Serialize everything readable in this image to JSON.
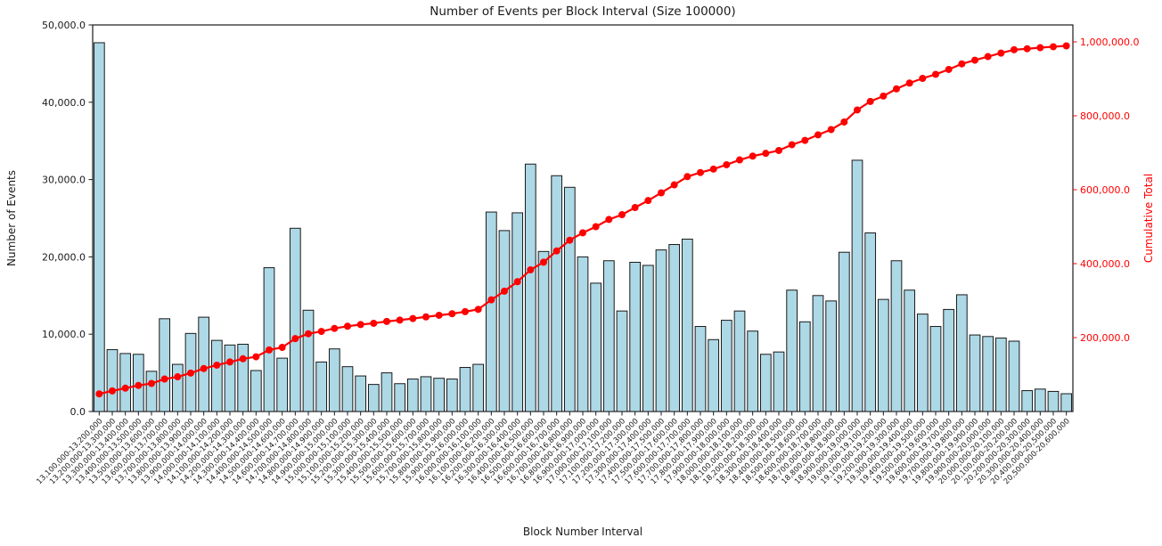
{
  "chart_data": {
    "type": "bar+line",
    "title": "Number of Events per Block Interval (Size 100000)",
    "xlabel": "Block Number Interval",
    "grid": false,
    "legend": "none",
    "background": "#ffffff",
    "left_axis": {
      "label": "Number of Events",
      "color": "#1a1a1a",
      "range": [
        0,
        50000
      ],
      "tick_values": [
        0,
        10000,
        20000,
        30000,
        40000,
        50000
      ],
      "tick_labels": [
        "0.0",
        "10,000.0",
        "20,000.0",
        "30,000.0",
        "40,000.0",
        "50,000.0"
      ]
    },
    "right_axis": {
      "label": "Cumulative Total",
      "color": "#ff0000",
      "range": [
        0,
        1045800
      ],
      "tick_values": [
        200000,
        400000,
        600000,
        800000,
        1000000
      ],
      "tick_labels": [
        "200,000.0",
        "400,000.0",
        "600,000.0",
        "800,000.0",
        "1,000,000.0"
      ]
    },
    "categories": [
      "13,100,000-13,200,000",
      "13,200,000-13,300,000",
      "13,300,000-13,400,000",
      "13,400,000-13,500,000",
      "13,500,000-13,600,000",
      "13,600,000-13,700,000",
      "13,700,000-13,800,000",
      "13,800,000-13,900,000",
      "13,900,000-14,000,000",
      "14,000,000-14,100,000",
      "14,100,000-14,200,000",
      "14,200,000-14,300,000",
      "14,300,000-14,400,000",
      "14,400,000-14,500,000",
      "14,500,000-14,600,000",
      "14,600,000-14,700,000",
      "14,700,000-14,800,000",
      "14,800,000-14,900,000",
      "14,900,000-15,000,000",
      "15,000,000-15,100,000",
      "15,100,000-15,200,000",
      "15,200,000-15,300,000",
      "15,300,000-15,400,000",
      "15,400,000-15,500,000",
      "15,500,000-15,600,000",
      "15,600,000-15,700,000",
      "15,700,000-15,800,000",
      "15,800,000-15,900,000",
      "15,900,000-16,000,000",
      "16,000,000-16,100,000",
      "16,100,000-16,200,000",
      "16,200,000-16,300,000",
      "16,300,000-16,400,000",
      "16,400,000-16,500,000",
      "16,500,000-16,600,000",
      "16,600,000-16,700,000",
      "16,700,000-16,800,000",
      "16,800,000-16,900,000",
      "16,900,000-17,000,000",
      "17,000,000-17,100,000",
      "17,100,000-17,200,000",
      "17,200,000-17,300,000",
      "17,300,000-17,400,000",
      "17,400,000-17,500,000",
      "17,500,000-17,600,000",
      "17,600,000-17,700,000",
      "17,700,000-17,800,000",
      "17,800,000-17,900,000",
      "17,900,000-18,000,000",
      "18,000,000-18,100,000",
      "18,100,000-18,200,000",
      "18,200,000-18,300,000",
      "18,300,000-18,400,000",
      "18,400,000-18,500,000",
      "18,500,000-18,600,000",
      "18,600,000-18,700,000",
      "18,700,000-18,800,000",
      "18,800,000-18,900,000",
      "18,900,000-19,000,000",
      "19,000,000-19,100,000",
      "19,100,000-19,200,000",
      "19,200,000-19,300,000",
      "19,300,000-19,400,000",
      "19,400,000-19,500,000",
      "19,500,000-19,600,000",
      "19,600,000-19,700,000",
      "19,700,000-19,800,000",
      "19,800,000-19,900,000",
      "19,900,000-20,000,000",
      "20,000,000-20,100,000",
      "20,100,000-20,200,000",
      "20,200,000-20,300,000",
      "20,300,000-20,400,000",
      "20,400,000-20,500,000",
      "20,500,000-20,600,000"
    ],
    "series": [
      {
        "name": "Number of Events",
        "type": "bar",
        "axis": "left",
        "color": "#add8e6",
        "edge_color": "#1a1a1a",
        "values": [
          47700,
          8000,
          7500,
          7400,
          5200,
          12000,
          6100,
          10100,
          12200,
          9200,
          8600,
          8700,
          5300,
          18600,
          6900,
          23700,
          13100,
          6400,
          8100,
          5800,
          4600,
          3500,
          5000,
          3600,
          4200,
          4500,
          4300,
          4200,
          5700,
          6100,
          25800,
          23400,
          25700,
          32000,
          20700,
          30500,
          29000,
          20000,
          16600,
          19500,
          13000,
          19300,
          18900,
          20900,
          21600,
          22300,
          11000,
          9300,
          11800,
          13000,
          10400,
          7400,
          7700,
          15700,
          11600,
          15000,
          14300,
          20600,
          32500,
          23100,
          14500,
          19500,
          15700,
          12600,
          11000,
          13200,
          15100,
          9900,
          9700,
          9500,
          9100,
          2700,
          2900,
          2600,
          2300
        ]
      },
      {
        "name": "Cumulative Total",
        "type": "line",
        "axis": "right",
        "color": "#ff0000",
        "marker": "circle",
        "values": [
          47700,
          55700,
          63200,
          70600,
          75800,
          87800,
          93900,
          104000,
          116200,
          125400,
          134000,
          142700,
          148000,
          166600,
          173500,
          197200,
          210300,
          216700,
          224800,
          230600,
          235200,
          238700,
          243700,
          247300,
          251500,
          256000,
          260300,
          264500,
          270200,
          276300,
          302100,
          325500,
          351200,
          383200,
          403900,
          434400,
          463400,
          483400,
          500000,
          519500,
          532500,
          551800,
          570700,
          591600,
          613200,
          635500,
          646500,
          655800,
          667600,
          680600,
          691000,
          698400,
          706100,
          721800,
          733400,
          748400,
          762700,
          783300,
          815800,
          838900,
          853400,
          872900,
          888600,
          901200,
          912200,
          925400,
          940500,
          950400,
          960100,
          969600,
          978700,
          981400,
          984300,
          986900,
          989200
        ]
      }
    ]
  }
}
